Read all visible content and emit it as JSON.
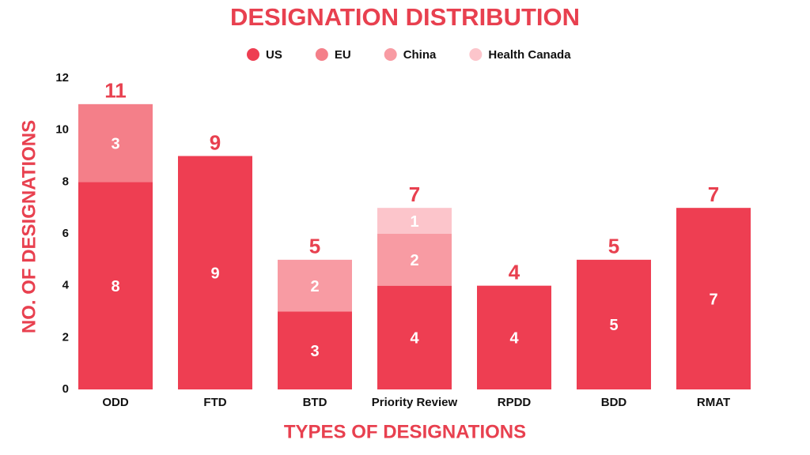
{
  "chart_data": {
    "type": "stacked_bar",
    "title": "DESIGNATION DISTRIBUTION",
    "x_label": "TYPES OF DESIGNATIONS",
    "y_label": "NO. OF DESIGNATIONS",
    "categories": [
      "ODD",
      "FTD",
      "BTD",
      "Priority Review",
      "RPDD",
      "BDD",
      "RMAT"
    ],
    "series": [
      {
        "name": "US",
        "color": "#ee3e52",
        "values": [
          8,
          9,
          3,
          4,
          4,
          5,
          7
        ]
      },
      {
        "name": "EU",
        "color": "#f47f89",
        "values": [
          3,
          null,
          null,
          null,
          null,
          null,
          null
        ]
      },
      {
        "name": "China",
        "color": "#f89ba3",
        "values": [
          null,
          null,
          2,
          2,
          null,
          null,
          null
        ]
      },
      {
        "name": "Health Canada",
        "color": "#fcc5cb",
        "values": [
          null,
          null,
          null,
          1,
          null,
          null,
          null
        ]
      }
    ],
    "totals": [
      11,
      9,
      5,
      7,
      4,
      5,
      7
    ],
    "ylim": [
      0,
      12
    ],
    "yticks": [
      0,
      2,
      4,
      6,
      8,
      10,
      12
    ],
    "legend": "top"
  }
}
